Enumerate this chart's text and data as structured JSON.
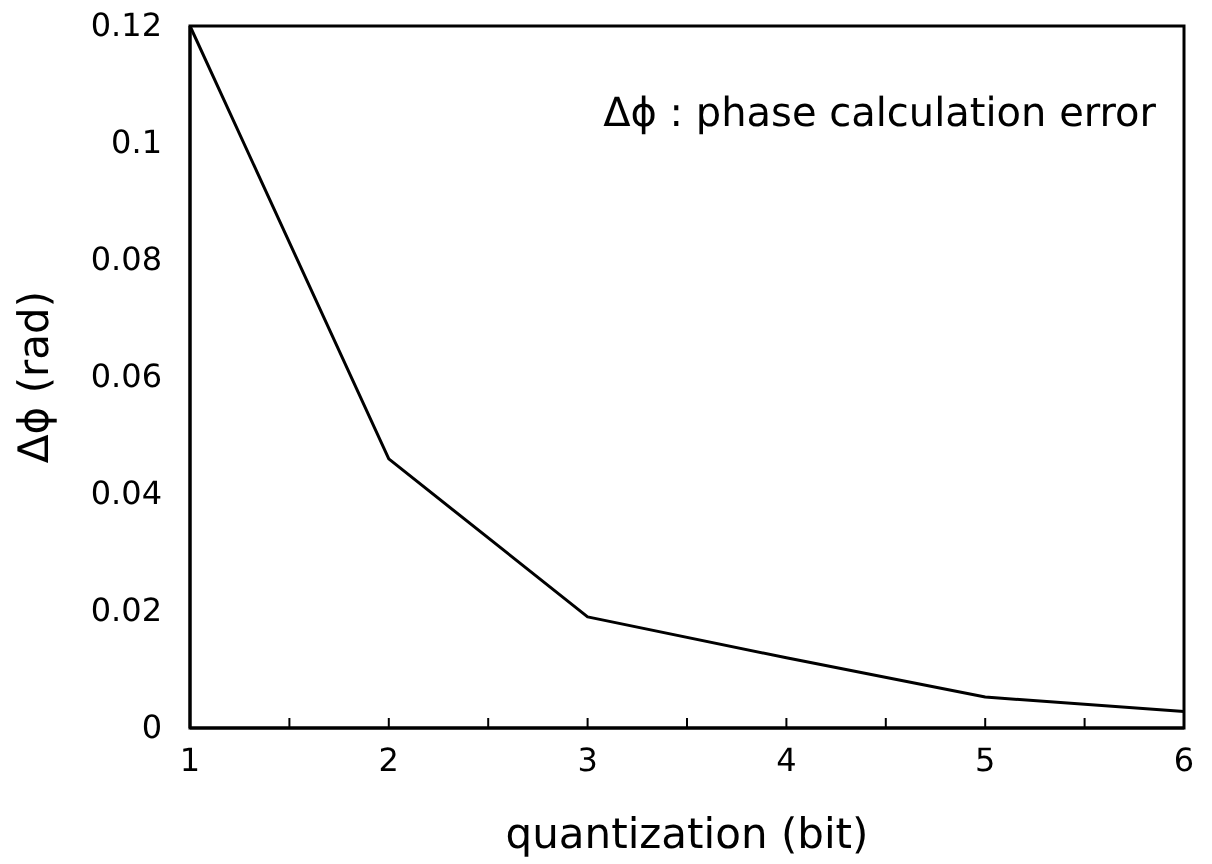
{
  "chart_data": {
    "type": "line",
    "xlabel": "quantization (bit)",
    "ylabel": "Δϕ (rad)",
    "annotations": [
      "Δϕ : phase calculation error"
    ],
    "x": [
      1,
      2,
      3,
      4,
      5,
      6
    ],
    "series": [
      {
        "color": "#000000",
        "values": [
          0.12,
          0.046,
          0.019,
          0.012,
          0.0053,
          0.0028
        ]
      }
    ],
    "xlim": [
      1,
      6
    ],
    "ylim": [
      0,
      0.12
    ],
    "xticks": [
      1,
      {
        "value": 1.5,
        "label": null
      },
      2,
      {
        "value": 2.5,
        "label": null
      },
      3,
      {
        "value": 3.5,
        "label": null
      },
      4,
      {
        "value": 4.5,
        "label": null
      },
      5,
      {
        "value": 5.5,
        "label": null
      },
      6
    ],
    "yticks": [
      0,
      0.02,
      0.04,
      0.06,
      0.08,
      0.1,
      0.12
    ],
    "grid": false,
    "marker": "none",
    "line_style": "solid"
  }
}
